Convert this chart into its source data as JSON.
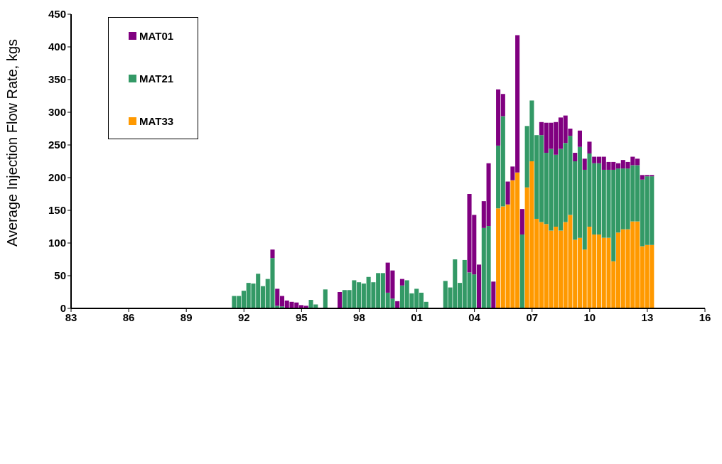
{
  "chart_data": {
    "type": "bar",
    "stacked": true,
    "ylabel": "Average Injection Flow Rate, kgs",
    "x": [
      1991.5,
      1991.75,
      1992,
      1992.25,
      1992.5,
      1992.75,
      1993,
      1993.25,
      1993.5,
      1993.75,
      1994,
      1994.25,
      1994.5,
      1994.75,
      1995,
      1995.25,
      1995.5,
      1995.75,
      1996,
      1996.25,
      1996.5,
      1996.75,
      1997,
      1997.25,
      1997.5,
      1997.75,
      1998,
      1998.25,
      1998.5,
      1998.75,
      1999,
      1999.25,
      1999.5,
      1999.75,
      2000,
      2000.25,
      2000.5,
      2000.75,
      2001,
      2001.25,
      2001.5,
      2001.75,
      2002,
      2002.25,
      2002.5,
      2002.75,
      2003,
      2003.25,
      2003.5,
      2003.75,
      2004,
      2004.25,
      2004.5,
      2004.75,
      2005,
      2005.25,
      2005.5,
      2005.75,
      2006,
      2006.25,
      2006.5,
      2006.75,
      2007,
      2007.25,
      2007.5,
      2007.75,
      2008,
      2008.25,
      2008.5,
      2008.75,
      2009,
      2009.25,
      2009.5,
      2009.75,
      2010,
      2010.25,
      2010.5,
      2010.75,
      2011,
      2011.25,
      2011.5,
      2011.75,
      2012,
      2012.25,
      2012.5,
      2012.75,
      2013,
      2013.25
    ],
    "series": [
      {
        "name": "MAT33",
        "color": "#ff9900",
        "values": [
          0,
          0,
          0,
          0,
          0,
          0,
          0,
          0,
          0,
          0,
          0,
          0,
          0,
          0,
          0,
          0,
          0,
          0,
          0,
          0,
          0,
          0,
          0,
          0,
          0,
          0,
          0,
          0,
          0,
          0,
          0,
          0,
          0,
          0,
          0,
          0,
          0,
          0,
          0,
          0,
          0,
          0,
          0,
          0,
          0,
          0,
          0,
          0,
          0,
          0,
          0,
          0,
          0,
          0,
          0,
          153,
          156,
          159,
          196,
          208,
          0,
          185,
          225,
          137,
          132,
          129,
          119,
          125,
          119,
          132,
          143,
          105,
          108,
          90,
          125,
          113,
          113,
          108,
          108,
          72,
          116,
          121,
          121,
          133,
          133,
          95,
          97,
          97
        ]
      },
      {
        "name": "MAT21",
        "color": "#339966",
        "values": [
          19,
          19,
          27,
          39,
          38,
          53,
          34,
          45,
          77,
          4,
          3,
          0,
          0,
          0,
          0,
          0,
          13,
          6,
          0,
          29,
          0,
          0,
          0,
          28,
          28,
          43,
          40,
          38,
          48,
          40,
          54,
          54,
          24,
          15,
          0,
          35,
          43,
          23,
          30,
          24,
          10,
          0,
          0,
          0,
          42,
          32,
          75,
          39,
          74,
          55,
          52,
          0,
          123,
          126,
          0,
          96,
          138,
          0,
          0,
          0,
          113,
          94,
          93,
          128,
          133,
          109,
          125,
          110,
          125,
          121,
          121,
          120,
          139,
          122,
          112,
          109,
          109,
          104,
          104,
          140,
          98,
          93,
          93,
          86,
          86,
          102,
          105,
          105
        ]
      },
      {
        "name": "MAT01",
        "color": "#800080",
        "values": [
          0,
          0,
          0,
          0,
          0,
          0,
          0,
          0,
          13,
          26,
          16,
          12,
          10,
          9,
          5,
          4,
          0,
          0,
          0,
          0,
          0,
          0,
          25,
          0,
          0,
          0,
          0,
          0,
          0,
          0,
          0,
          0,
          46,
          43,
          11,
          10,
          0,
          0,
          0,
          0,
          0,
          0,
          0,
          0,
          0,
          0,
          0,
          0,
          0,
          120,
          91,
          67,
          41,
          96,
          41,
          86,
          34,
          35,
          21,
          210,
          39,
          0,
          0,
          0,
          20,
          46,
          40,
          50,
          48,
          42,
          11,
          13,
          25,
          17,
          18,
          10,
          10,
          20,
          12,
          12,
          8,
          13,
          10,
          13,
          10,
          7,
          2,
          2
        ]
      }
    ],
    "xlim": [
      1983,
      2016
    ],
    "xticks": [
      {
        "value": 1983,
        "label": "83"
      },
      {
        "value": 1986,
        "label": "86"
      },
      {
        "value": 1989,
        "label": "89"
      },
      {
        "value": 1992,
        "label": "92"
      },
      {
        "value": 1995,
        "label": "95"
      },
      {
        "value": 1998,
        "label": "98"
      },
      {
        "value": 2001,
        "label": "01"
      },
      {
        "value": 2004,
        "label": "04"
      },
      {
        "value": 2007,
        "label": "07"
      },
      {
        "value": 2010,
        "label": "10"
      },
      {
        "value": 2013,
        "label": "13"
      },
      {
        "value": 2016,
        "label": "16"
      }
    ],
    "ylim": [
      0,
      450
    ],
    "yticks": [
      0,
      50,
      100,
      150,
      200,
      250,
      300,
      350,
      400,
      450
    ],
    "grid": false,
    "legend": "top left"
  }
}
